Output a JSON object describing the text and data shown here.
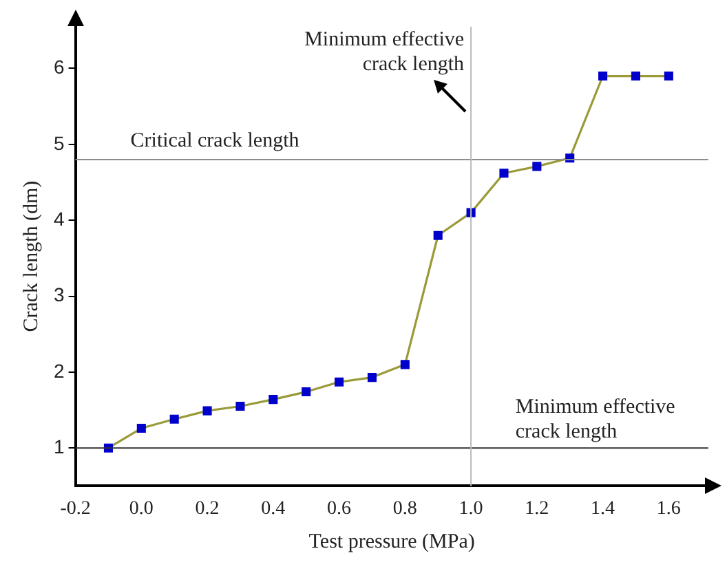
{
  "chart_data": {
    "type": "line",
    "xlabel": "Test pressure (MPa)",
    "ylabel": "Crack length (dm)",
    "x": [
      -0.1,
      0.0,
      0.1,
      0.2,
      0.3,
      0.4,
      0.5,
      0.6,
      0.7,
      0.8,
      0.9,
      1.0,
      1.1,
      1.2,
      1.3,
      1.4,
      1.5,
      1.6
    ],
    "series": [
      {
        "color": "#0000cc",
        "values": [
          1.0,
          1.26,
          1.38,
          1.49,
          1.55,
          1.64,
          1.74,
          1.87,
          1.93,
          2.1,
          3.8,
          4.1,
          4.62,
          4.71,
          4.82,
          5.9,
          5.9,
          5.9
        ]
      }
    ],
    "xlim": [
      -0.2,
      1.72
    ],
    "ylim": [
      0.5,
      6.55
    ],
    "xticks": [
      {
        "value": -0.2,
        "label": "-0.2"
      },
      {
        "value": 0,
        "label": "0.0"
      },
      {
        "value": 0.2,
        "label": "0.2"
      },
      {
        "value": 0.4,
        "label": "0.4"
      },
      {
        "value": 0.6,
        "label": "0.6"
      },
      {
        "value": 0.8,
        "label": "0.8"
      },
      {
        "value": 1.0,
        "label": "1.0"
      },
      {
        "value": 1.2,
        "label": "1.2"
      },
      {
        "value": 1.4,
        "label": "1.4"
      },
      {
        "value": 1.6,
        "label": "1.6"
      }
    ],
    "yticks": [
      1,
      2,
      3,
      4,
      5,
      6
    ],
    "ref_lines": [
      {
        "axis": "y",
        "value": 4.8,
        "label": "Critical crack length",
        "color": "#8c8c8c"
      },
      {
        "axis": "y",
        "value": 1,
        "label": "Minimum effective crack length",
        "color": "#333333"
      },
      {
        "axis": "x",
        "value": 1.0,
        "label": "Minimum effective crack length",
        "color": "#bbbbbb"
      }
    ],
    "grid": false,
    "legend": false,
    "marker": "square",
    "line_style": "solid"
  }
}
